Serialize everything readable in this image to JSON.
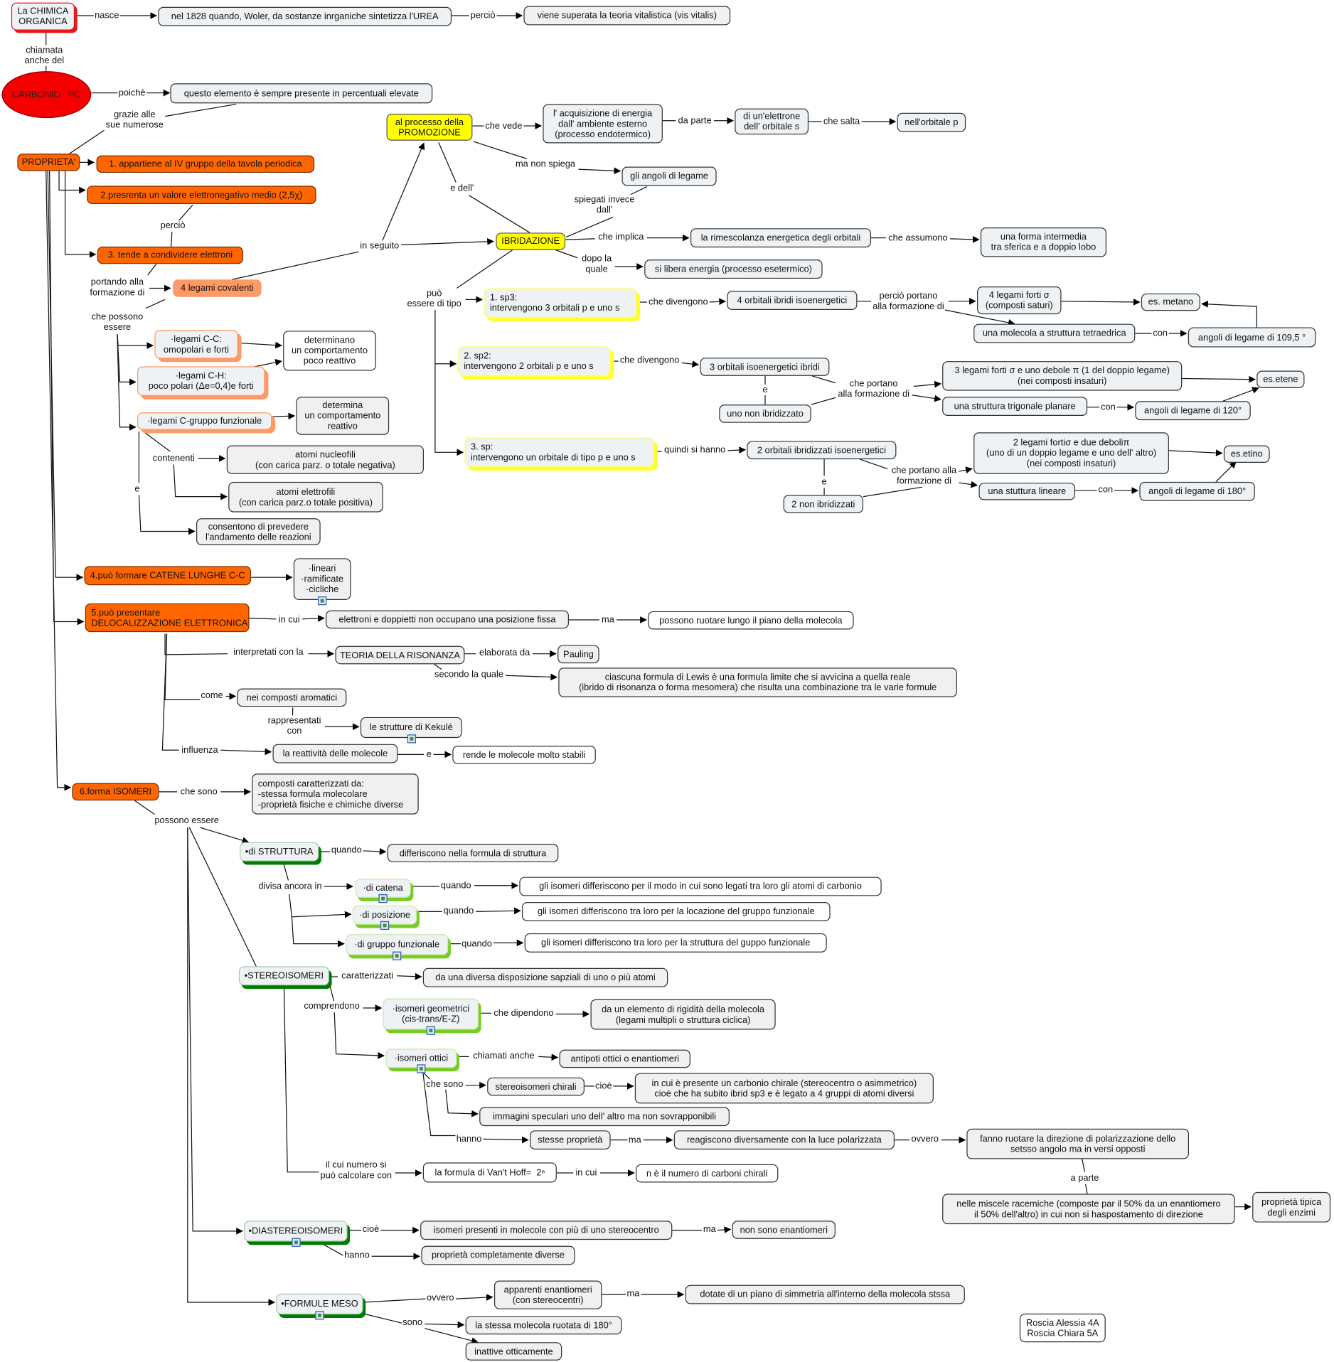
{
  "colors": {
    "orange": "#ff6600",
    "salmon": "#ff9966",
    "yellow": "#ffff00",
    "red": "#f40000",
    "dark_green": "#007a00",
    "light_green": "#77cc22"
  },
  "nodes": [
    "La CHIMICA\nORGANICA",
    "nel 1828 quando, Woler, da sostanze inrganiche sintetizza l'UREA",
    "viene superata la teoria vitalistica (vis vitalis)",
    "CARBONIO   ¹²C",
    "questo elemento è sempre presente in percentuali elevate",
    "PROPRIETA'",
    "1. appartiene al IV gruppo della tavola periodica",
    "2.presrenta un valore elettronegativo medio (2,5χ)",
    "3. tende a condividere elettroni",
    "4 legami covalenti",
    "al processo della\nPROMOZIONE",
    "l' acquisizione di energia\ndall' ambiente esterno\n(processo endotermico)",
    "di un'elettrone\ndell' orbitale s",
    "nell'orbitale p",
    "gli angoli di legame",
    "IBRIDAZIONE",
    "la rimescolanza energetica degli orbitali",
    "una forma intermedia\ntra sferica e a doppio lobo",
    "si libera energia (processo esetermico)",
    "1. sp3:\nintervengono 3 orbitali p e uno s",
    "4 orbitali ibridi isoenergetici",
    "4 legami forti σ\n(composti saturi)",
    "es. metano",
    "una molecola a struttura tetraedrica",
    "angoli di legame di 109,5 °",
    "2. sp2:\nintervengono 2 orbitali p e uno s",
    "3 orbitali isoenergetici ibridi",
    "3 legami forti σ e uno debole π (1 del doppio legame)\n(nei composti insaturi)",
    "es.etene",
    "uno non ibridizzato",
    "una struttura trigonale planare",
    "angoli di legame di 120°",
    "3. sp:\nintervengono un orbitale di tipo p e uno s",
    "2 orbitali ibridizzati isoenergetici",
    "2 legami fortiσ e due deboliπ\n(uno di un doppio legame e uno dell' altro)\n(nei composti insaturi)",
    "es.etino",
    "2 non ibridizzati",
    "una stuttura lineare",
    "angoli di legame di 180°",
    "·legami C-C:\nomopolari e forti",
    "determinano\nun comportamento\npoco reattivo",
    "·legami C-H:\npoco polari (Δe=0,4)e forti",
    "·legami C-gruppo funzionale",
    "determina\nun comportamento\nreattivo",
    "atomi nucleofili\n(con carica parz. o totale negativa)",
    "atomi elettrofili\n(con carica parz.o totale positiva)",
    "consentono di prevedere\nl'andamento delle reazioni",
    "4.può formare CATENE LUNGHE C-C",
    "·lineari\n·ramificate\n·cicliche",
    "5.può presentare\nDELOCALIZZAZIONE ELETTRONICA",
    "elettroni e doppietti non occupano una posizione fissa",
    "possono ruotare lungo il piano della molecola",
    "TEORIA DELLA RISONANZA",
    "Pauling",
    "ciascuna formula di Lewis è una formula limite che si avvicina a quella reale\n(ibrido di risonanza o forma mesomera) che risulta una combinazione tra le varie formule",
    "nei composti aromatici",
    "le strutture di Kekulé",
    "la reattività delle molecole",
    "rende le molecole molto stabili",
    "6.forma ISOMERI",
    "composti caratterizzati da:\n-stessa formula molecolare\n-proprietà fisiche e chimiche diverse",
    "•di STRUTTURA",
    "differiscono nella formula di struttura",
    "·di catena",
    "gli isomeri differiscono per il modo in cui sono legati tra loro gli atomi di carbonio",
    "·di posizione",
    "gli isomeri differiscono tra loro per la locazione del gruppo funzionale",
    "·di gruppo funzionale",
    "gli isomeri differiscono tra loro per la struttura del guppo funzionale",
    "•STEREOISOMERI",
    "da una diversa disposizione sapziali di uno o più atomi",
    "·isomeri geometrici\n(cis-trans/E-Z)",
    "da un elemento di rigidità della molecola\n(legami multipli o struttura ciclica)",
    "·isomeri ottici",
    "antipoti ottici o enantiomeri",
    "stereoisomeri chirali",
    "in cui è presente un carbonio chirale (stereocentro o asimmetrico)\ncioè che ha subito ibrid sp3 e è legato a 4 gruppi di atomi diversi",
    "immagini speculari uno dell' altro ma non sovrapponibili",
    "stesse proprietà",
    "reagiscono diversamente con la luce polarizzata",
    "fanno ruotare la direzione di polarizzazione dello\nsetsso angolo ma in versi opposti",
    "la formula di Van't Hoff=  2ⁿ",
    "n è il numero di carboni chirali",
    "nelle miscele racemiche (composte par il 50% da un enantiomero\nil 50% dell'altro) in cui non si haspostamento di direzione",
    "proprietà tipica\ndegli enzimi",
    "•DIASTEREOISOMERI",
    "isomeri presenti in molecole con più di uno stereocentro",
    "non sono enantiomeri",
    "proprietà completamente diverse",
    "•FORMULE MESO",
    "apparenti enantiomeri\n(con stereocentri)",
    "dotate di un piano di simmetria all'interno della molecola stssa",
    "la stessa molecola ruotata di 180°",
    "inattive otticamente",
    "Roscia Alessia 4A\nRoscia Chiara 5A"
  ],
  "links": [
    "nasce",
    "perciò",
    "chiamata\nanche del",
    "poichè",
    "grazie alle\nsue numerose",
    "perciò",
    "portando alla\nformazione di",
    "che possono\nessere",
    "in seguito",
    "che vede",
    "da parte",
    "che salta",
    "ma non spiega",
    "e dell'",
    "spiegati invece\ndall'",
    "che implica",
    "che assumono",
    "dopo la\nquale",
    "può\nessere di tipo",
    "che divengono",
    "perciò portano\nalla formazione di",
    "con",
    "che divengono",
    "che portano\nalla formazione di",
    "e",
    "con",
    "quindi si hanno",
    "che portano alla\nformazione di",
    "e",
    "con",
    "contenenti",
    "e",
    "in cui",
    "ma",
    "interpretati con la",
    "elaborata da",
    "secondo la quale",
    "come",
    "rappresentati\ncon",
    "influenza",
    "e",
    "che sono",
    "possono essere",
    "quando",
    "divisa ancora in",
    "quando",
    "quando",
    "quando",
    "caratterizzati",
    "comprendono",
    "che dipendono",
    "chiamati anche",
    "che sono",
    "cioè",
    "hanno",
    "ma",
    "ovvero",
    "il cui numero si\npuò calcolare con",
    "in cui",
    "a parte",
    "cioè",
    "ma",
    "hanno",
    "ovvero",
    "ma",
    "sono"
  ]
}
